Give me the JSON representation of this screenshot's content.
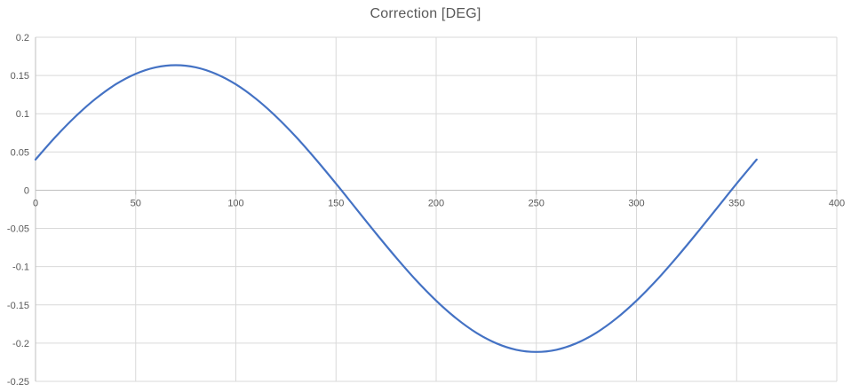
{
  "chart_data": {
    "type": "line",
    "title": "Correction [DEG]",
    "x": [
      0,
      10,
      20,
      30,
      40,
      50,
      60,
      70,
      80,
      90,
      100,
      110,
      120,
      130,
      140,
      150,
      160,
      170,
      180,
      190,
      200,
      210,
      220,
      230,
      240,
      250,
      260,
      270,
      280,
      290,
      300,
      310,
      320,
      330,
      340,
      350,
      360
    ],
    "y": [
      0.0401,
      0.0698,
      0.0965,
      0.1196,
      0.1384,
      0.1522,
      0.1607,
      0.1635,
      0.1607,
      0.1522,
      0.1384,
      0.1196,
      0.0965,
      0.0698,
      0.0401,
      0.0086,
      -0.024,
      -0.0566,
      -0.0881,
      -0.1178,
      -0.1445,
      -0.1676,
      -0.1864,
      -0.2002,
      -0.2087,
      -0.2115,
      -0.2087,
      -0.2002,
      -0.1864,
      -0.1676,
      -0.1445,
      -0.1178,
      -0.0881,
      -0.0566,
      -0.024,
      0.0086,
      0.0401
    ],
    "xlabel": "",
    "ylabel": "",
    "xlim": [
      0,
      400
    ],
    "ylim": [
      -0.25,
      0.2
    ],
    "x_ticks": [
      0,
      50,
      100,
      150,
      200,
      250,
      300,
      350,
      400
    ],
    "x_tick_labels": [
      "0",
      "50",
      "100",
      "150",
      "200",
      "250",
      "300",
      "350",
      "400"
    ],
    "y_ticks": [
      0.2,
      0.15,
      0.1,
      0.05,
      0,
      -0.05,
      -0.1,
      -0.15,
      -0.2,
      -0.25
    ],
    "y_tick_labels": [
      "0.2",
      "0.15",
      "0.1",
      "0.05",
      "0",
      "-0.05",
      "-0.1",
      "-0.15",
      "-0.2",
      "-0.25"
    ],
    "grid": true,
    "legend_position": "none"
  },
  "colors": {
    "line": "#4472C4",
    "gridline": "#D9D9D9",
    "axis_line": "#BFBFBF",
    "tick_label": "#595959",
    "title": "#595959",
    "background": "#FFFFFF"
  }
}
